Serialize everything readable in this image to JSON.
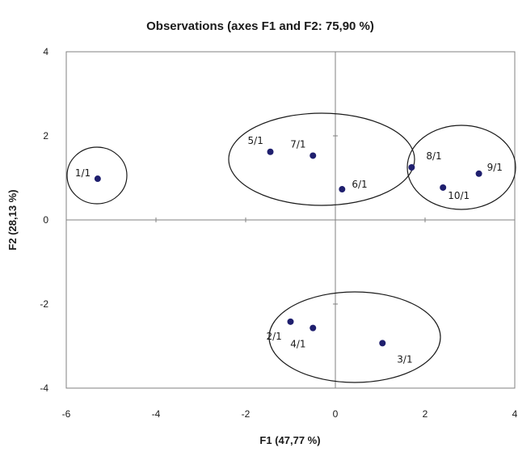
{
  "chart_data": {
    "type": "scatter",
    "title": "Observations (axes F1 and F2: 75,90 %)",
    "xlabel": "F1 (47,77 %)",
    "ylabel": "F2 (28,13 %)",
    "xlim": [
      -6,
      4
    ],
    "ylim": [
      -4,
      4
    ],
    "xticks": [
      "-6",
      "-4",
      "-2",
      "0",
      "2",
      "4"
    ],
    "yticks": [
      "-4",
      "-2",
      "0",
      "2",
      "4"
    ],
    "grid": false,
    "point_color": "#1f1f6e",
    "points": [
      {
        "label": "1/1",
        "x": -5.3,
        "y": 0.98
      },
      {
        "label": "5/1",
        "x": -1.45,
        "y": 1.62
      },
      {
        "label": "7/1",
        "x": -0.5,
        "y": 1.53
      },
      {
        "label": "6/1",
        "x": 0.15,
        "y": 0.73
      },
      {
        "label": "8/1",
        "x": 1.7,
        "y": 1.25
      },
      {
        "label": "10/1",
        "x": 2.4,
        "y": 0.77
      },
      {
        "label": "9/1",
        "x": 3.2,
        "y": 1.1
      },
      {
        "label": "2/1",
        "x": -1.0,
        "y": -2.42
      },
      {
        "label": "4/1",
        "x": -0.5,
        "y": -2.57
      },
      {
        "label": "3/1",
        "x": 1.05,
        "y": -2.93
      }
    ]
  }
}
